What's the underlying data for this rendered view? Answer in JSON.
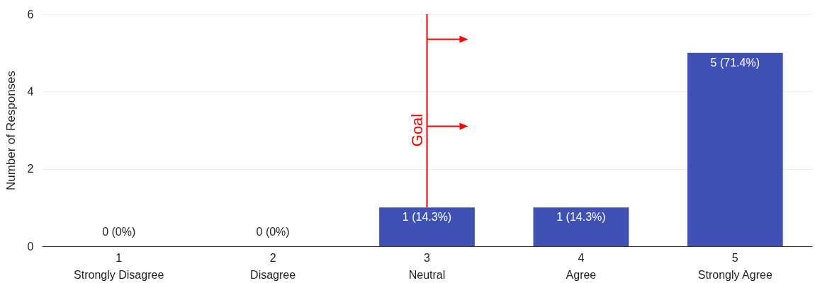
{
  "chart_data": {
    "type": "bar",
    "ylabel": "Number of Responses",
    "categories": [
      "1\nStrongly Disagree",
      "2\nDisagree",
      "3\nNeutral",
      "4\nAgree",
      "5\nStrongly Agree"
    ],
    "values": [
      0,
      0,
      1,
      1,
      5
    ],
    "value_labels": [
      "0 (0%)",
      "0 (0%)",
      "1 (14.3%)",
      "1 (14.3%)",
      "5 (71.4%)"
    ],
    "color": "#3f51b5",
    "ylim": [
      0,
      6
    ],
    "yticks": [
      0,
      2,
      4,
      6
    ],
    "grid": "y",
    "ref_lines": [
      {
        "axis": "x",
        "value": "3\nNeutral",
        "label": "Goal",
        "color": "#ff0000"
      }
    ]
  }
}
